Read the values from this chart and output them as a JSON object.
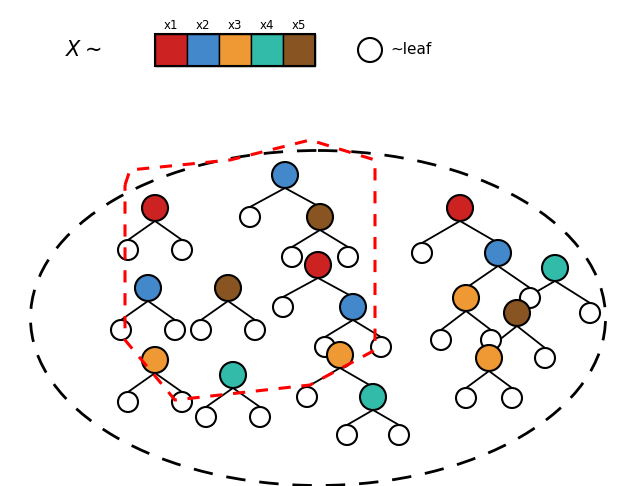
{
  "fig_width": 6.4,
  "fig_height": 4.86,
  "dpi": 100,
  "bg_color": "white",
  "colors": {
    "red": "#CC2222",
    "blue": "#4488CC",
    "orange": "#EE9933",
    "teal": "#33BBAA",
    "brown": "#885522",
    "white": "#FFFFFF"
  },
  "feature_labels": [
    "x1",
    "x2",
    "x3",
    "x4",
    "x5"
  ],
  "feature_colors": [
    "#CC2222",
    "#4488CC",
    "#EE9933",
    "#33BBAA",
    "#885522"
  ]
}
